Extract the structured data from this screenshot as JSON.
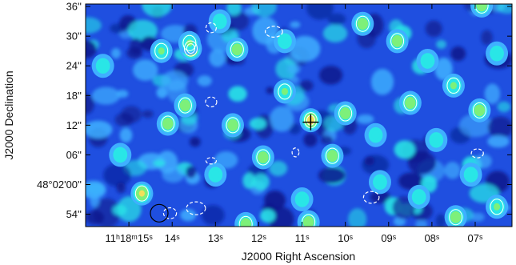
{
  "chart_data": {
    "type": "heatmap",
    "title": "",
    "xlabel": "J2000 Right Ascension",
    "ylabel": "J2000 Declination",
    "colormap": [
      "#0b1a8c",
      "#1f4fe0",
      "#3fb0ff",
      "#29e6e6",
      "#7df07a",
      "#f2e05a",
      "#f08a3a",
      "#d43a2a"
    ],
    "contour_color_positive": "#ffffff",
    "contour_color_negative": "#ffffff",
    "x_ticks": [
      {
        "ra_sec": 15.0,
        "label": "11ʰ18ᵐ15ˢ"
      },
      {
        "ra_sec": 14.0,
        "label": "14ˢ"
      },
      {
        "ra_sec": 13.0,
        "label": "13ˢ"
      },
      {
        "ra_sec": 12.0,
        "label": "12ˢ"
      },
      {
        "ra_sec": 11.0,
        "label": "11ˢ"
      },
      {
        "ra_sec": 10.0,
        "label": "10ˢ"
      },
      {
        "ra_sec": 9.0,
        "label": "09ˢ"
      },
      {
        "ra_sec": 8.0,
        "label": "08ˢ"
      },
      {
        "ra_sec": 7.0,
        "label": "07ˢ"
      }
    ],
    "y_ticks": [
      {
        "dec_arcsec": 36,
        "label": "36''"
      },
      {
        "dec_arcsec": 30,
        "label": "30''"
      },
      {
        "dec_arcsec": 24,
        "label": "24''"
      },
      {
        "dec_arcsec": 18,
        "label": "18''"
      },
      {
        "dec_arcsec": 12,
        "label": "12''"
      },
      {
        "dec_arcsec": 6,
        "label": "06''"
      },
      {
        "dec_arcsec": 0,
        "label": "48°02'00''"
      },
      {
        "dec_arcsec": -6,
        "label": "54''"
      }
    ],
    "xlim_ra_sec": [
      16.0,
      6.15
    ],
    "ylim_dec_arcsec": [
      -8.5,
      36.5
    ],
    "blobs": [
      {
        "ra": 13.57,
        "dec": 27.5,
        "level": 0.97,
        "contour": "positive"
      },
      {
        "ra": 13.6,
        "dec": 28.6,
        "level": 0.55,
        "contour": "positive"
      },
      {
        "ra": 10.8,
        "dec": 13.0,
        "level": 0.78,
        "contour": "positive"
      },
      {
        "ra": 14.7,
        "dec": -1.8,
        "level": 0.72,
        "contour": "positive"
      },
      {
        "ra": 13.7,
        "dec": 16.0,
        "level": 0.62,
        "contour": "positive"
      },
      {
        "ra": 12.6,
        "dec": 12.0,
        "level": 0.64,
        "contour": "positive"
      },
      {
        "ra": 12.5,
        "dec": 27.3,
        "level": 0.62,
        "contour": "positive"
      },
      {
        "ra": 14.1,
        "dec": 12.3,
        "level": 0.6,
        "contour": "positive"
      },
      {
        "ra": 11.9,
        "dec": 5.5,
        "level": 0.63,
        "contour": "positive"
      },
      {
        "ra": 10.3,
        "dec": 5.8,
        "level": 0.58,
        "contour": "positive"
      },
      {
        "ra": 10.0,
        "dec": 14.4,
        "level": 0.62,
        "contour": "positive"
      },
      {
        "ra": 9.6,
        "dec": 32.5,
        "level": 0.6,
        "contour": "positive"
      },
      {
        "ra": 8.8,
        "dec": 29.0,
        "level": 0.58,
        "contour": "positive"
      },
      {
        "ra": 8.5,
        "dec": 16.5,
        "level": 0.6,
        "contour": "positive"
      },
      {
        "ra": 7.5,
        "dec": 20.0,
        "level": 0.55,
        "contour": "positive"
      },
      {
        "ra": 6.9,
        "dec": 15.0,
        "level": 0.62,
        "contour": "positive"
      },
      {
        "ra": 6.85,
        "dec": 36.2,
        "level": 0.6,
        "contour": "positive"
      },
      {
        "ra": 12.3,
        "dec": -8.0,
        "level": 0.62,
        "contour": "positive"
      },
      {
        "ra": 10.85,
        "dec": -7.6,
        "level": 0.6,
        "contour": "positive"
      },
      {
        "ra": 7.45,
        "dec": -6.6,
        "level": 0.58,
        "contour": "positive"
      },
      {
        "ra": 14.25,
        "dec": 27.0,
        "level": 0.55,
        "contour": "positive"
      },
      {
        "ra": 11.4,
        "dec": 18.8,
        "level": 0.52,
        "contour": "positive"
      },
      {
        "ra": 6.5,
        "dec": -4.5,
        "level": 0.5,
        "contour": "positive"
      },
      {
        "ra": 15.6,
        "dec": 24.0,
        "level": 0.45,
        "contour": "none"
      },
      {
        "ra": 9.3,
        "dec": 10.0,
        "level": 0.46,
        "contour": "none"
      },
      {
        "ra": 7.9,
        "dec": 9.0,
        "level": 0.44,
        "contour": "none"
      },
      {
        "ra": 12.9,
        "dec": 33.0,
        "level": 0.44,
        "contour": "none"
      },
      {
        "ra": 11.4,
        "dec": 29.0,
        "level": 0.45,
        "contour": "none"
      },
      {
        "ra": 8.1,
        "dec": 25.0,
        "level": 0.42,
        "contour": "none"
      },
      {
        "ra": 9.2,
        "dec": 0.5,
        "level": 0.45,
        "contour": "none"
      },
      {
        "ra": 7.1,
        "dec": 2.0,
        "level": 0.42,
        "contour": "none"
      },
      {
        "ra": 15.2,
        "dec": 6.0,
        "level": 0.44,
        "contour": "none"
      },
      {
        "ra": 13.0,
        "dec": 2.0,
        "level": 0.45,
        "contour": "none"
      },
      {
        "ra": 11.0,
        "dec": -3.0,
        "level": 0.44,
        "contour": "none"
      },
      {
        "ra": 8.3,
        "dec": -2.5,
        "level": 0.44,
        "contour": "none"
      },
      {
        "ra": 6.5,
        "dec": 26.5,
        "level": 0.42,
        "contour": "none"
      }
    ],
    "negative_contours": [
      {
        "ra": 13.1,
        "dec": 31.7,
        "rx": 0.12,
        "ry": 1.0
      },
      {
        "ra": 11.65,
        "dec": 30.9,
        "rx": 0.2,
        "ry": 1.1
      },
      {
        "ra": 13.1,
        "dec": 16.7,
        "rx": 0.13,
        "ry": 1.0
      },
      {
        "ra": 13.1,
        "dec": 4.8,
        "rx": 0.12,
        "ry": 0.6
      },
      {
        "ra": 11.15,
        "dec": 6.5,
        "rx": 0.08,
        "ry": 0.9
      },
      {
        "ra": 9.4,
        "dec": -2.6,
        "rx": 0.18,
        "ry": 1.2
      },
      {
        "ra": 13.45,
        "dec": -4.8,
        "rx": 0.22,
        "ry": 1.3
      },
      {
        "ra": 14.05,
        "dec": -5.8,
        "rx": 0.15,
        "ry": 1.1
      },
      {
        "ra": 6.95,
        "dec": 6.3,
        "rx": 0.14,
        "ry": 0.9
      }
    ],
    "beam": {
      "ra": 14.3,
      "dec": -5.8
    },
    "marker": {
      "ra": 10.8,
      "dec": 12.6
    }
  }
}
